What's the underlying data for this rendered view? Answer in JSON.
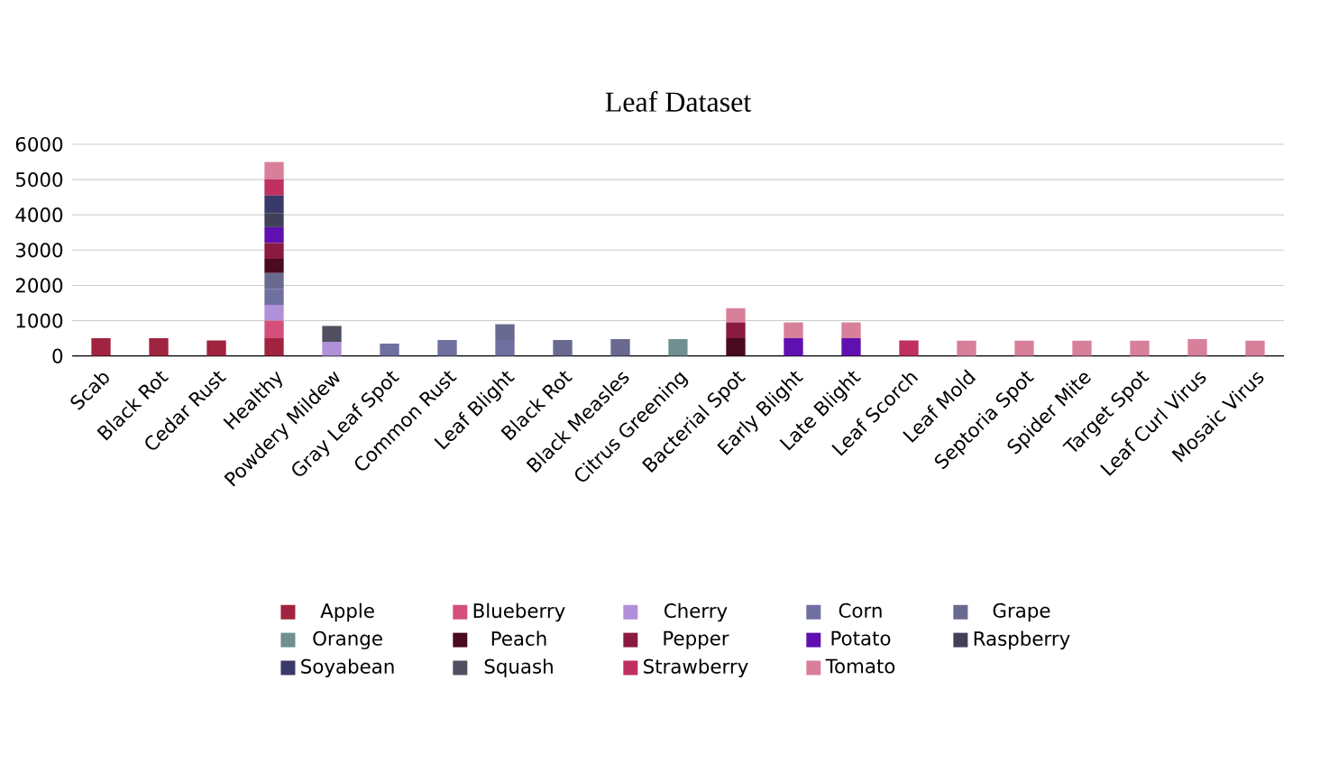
{
  "chart_data": {
    "type": "bar",
    "stacked": true,
    "title": "Leaf Dataset",
    "categories": [
      "Scab",
      "Black Rot",
      "Cedar Rust",
      "Healthy",
      "Powdery Mildew",
      "Gray Leaf Spot",
      "Common Rust",
      "Leaf Blight",
      "Black Rot",
      "Black Measles",
      "Citrus Greening",
      "Bacterial Spot",
      "Early Blight",
      "Late Blight",
      "Leaf Scorch",
      "Leaf Mold",
      "Septoria Spot",
      "Spider Mite",
      "Target Spot",
      "Leaf Curl Virus",
      "Mosaic Virus"
    ],
    "series": [
      {
        "name": "Apple",
        "color": "#a0233f",
        "values": [
          500,
          500,
          440,
          500,
          null,
          null,
          null,
          null,
          null,
          null,
          null,
          null,
          null,
          null,
          null,
          null,
          null,
          null,
          null,
          null,
          null
        ]
      },
      {
        "name": "Blueberry",
        "color": "#d4507a",
        "values": [
          null,
          null,
          null,
          500,
          null,
          null,
          null,
          null,
          null,
          null,
          null,
          null,
          null,
          null,
          null,
          null,
          null,
          null,
          null,
          null,
          null
        ]
      },
      {
        "name": "Cherry",
        "color": "#b090d8",
        "values": [
          null,
          null,
          null,
          450,
          400,
          null,
          null,
          null,
          null,
          null,
          null,
          null,
          null,
          null,
          null,
          null,
          null,
          null,
          null,
          null,
          null
        ]
      },
      {
        "name": "Corn",
        "color": "#7070a0",
        "values": [
          null,
          null,
          null,
          450,
          null,
          350,
          450,
          450,
          null,
          null,
          null,
          null,
          null,
          null,
          null,
          null,
          null,
          null,
          null,
          null,
          null
        ]
      },
      {
        "name": "Grape",
        "color": "#6a6a90",
        "values": [
          null,
          null,
          null,
          450,
          null,
          null,
          null,
          450,
          450,
          480,
          null,
          null,
          null,
          null,
          null,
          null,
          null,
          null,
          null,
          null,
          null
        ]
      },
      {
        "name": "Orange",
        "color": "#6f8f90",
        "values": [
          null,
          null,
          null,
          null,
          null,
          null,
          null,
          null,
          null,
          null,
          480,
          null,
          null,
          null,
          null,
          null,
          null,
          null,
          null,
          null,
          null
        ]
      },
      {
        "name": "Peach",
        "color": "#4a0a20",
        "values": [
          null,
          null,
          null,
          400,
          null,
          null,
          null,
          null,
          null,
          null,
          null,
          500,
          null,
          null,
          null,
          null,
          null,
          null,
          null,
          null,
          null
        ]
      },
      {
        "name": "Pepper",
        "color": "#8a1a40",
        "values": [
          null,
          null,
          null,
          450,
          null,
          null,
          null,
          null,
          null,
          null,
          null,
          450,
          null,
          null,
          null,
          null,
          null,
          null,
          null,
          null,
          null
        ]
      },
      {
        "name": "Potato",
        "color": "#6010b0",
        "values": [
          null,
          null,
          null,
          450,
          null,
          null,
          null,
          null,
          null,
          null,
          null,
          null,
          500,
          500,
          null,
          null,
          null,
          null,
          null,
          null,
          null
        ]
      },
      {
        "name": "Raspberry",
        "color": "#404058",
        "values": [
          null,
          null,
          null,
          400,
          null,
          null,
          null,
          null,
          null,
          null,
          null,
          null,
          null,
          null,
          null,
          null,
          null,
          null,
          null,
          null,
          null
        ]
      },
      {
        "name": "Soyabean",
        "color": "#3a3a6a",
        "values": [
          null,
          null,
          null,
          500,
          null,
          null,
          null,
          null,
          null,
          null,
          null,
          null,
          null,
          null,
          null,
          null,
          null,
          null,
          null,
          null,
          null
        ]
      },
      {
        "name": "Squash",
        "color": "#505060",
        "values": [
          null,
          null,
          null,
          null,
          450,
          null,
          null,
          null,
          null,
          null,
          null,
          null,
          null,
          null,
          null,
          null,
          null,
          null,
          null,
          null,
          null
        ]
      },
      {
        "name": "Strawberry",
        "color": "#c03060",
        "values": [
          null,
          null,
          null,
          450,
          null,
          null,
          null,
          null,
          null,
          null,
          null,
          null,
          null,
          null,
          440,
          null,
          null,
          null,
          null,
          null,
          null
        ]
      },
      {
        "name": "Tomato",
        "color": "#d8809a",
        "values": [
          null,
          null,
          null,
          500,
          null,
          null,
          null,
          null,
          null,
          null,
          null,
          400,
          450,
          450,
          null,
          430,
          430,
          430,
          430,
          480,
          430
        ]
      }
    ],
    "ylim": [
      0,
      6000
    ],
    "yticks": [
      0,
      1000,
      2000,
      3000,
      4000,
      5000,
      6000
    ],
    "grid": "y",
    "legend": "bottom"
  }
}
